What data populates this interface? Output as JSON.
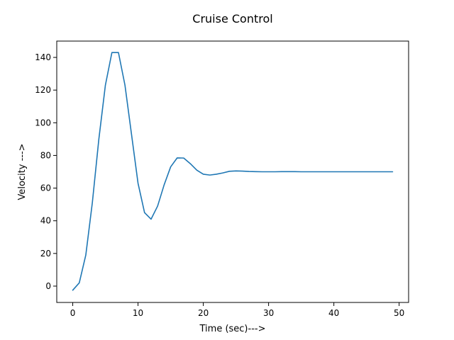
{
  "chart_data": {
    "type": "line",
    "title": "Cruise Control",
    "xlabel": "Time (sec)--->",
    "ylabel": "Velocity --->",
    "xlim": [
      -2.45,
      51.45
    ],
    "ylim": [
      -10.0,
      150.0
    ],
    "xticks": [
      0,
      10,
      20,
      30,
      40,
      50
    ],
    "yticks": [
      0,
      20,
      40,
      60,
      80,
      100,
      120,
      140
    ],
    "grid": false,
    "series": [
      {
        "color": "#1f77b4",
        "x": [
          0,
          1,
          2,
          3,
          4,
          5,
          6,
          7,
          8,
          9,
          10,
          11,
          12,
          13,
          14,
          15,
          16,
          17,
          18,
          19,
          20,
          21,
          22,
          23,
          24,
          25,
          26,
          27,
          28,
          29,
          30,
          31,
          32,
          33,
          34,
          35,
          36,
          37,
          38,
          39,
          40,
          41,
          42,
          43,
          44,
          45,
          46,
          47,
          48,
          49
        ],
        "y": [
          -2.5,
          2,
          19,
          51,
          90,
          123,
          143,
          143,
          123,
          93,
          63,
          45,
          41,
          49,
          62,
          73,
          78.5,
          78.4,
          75,
          71,
          68.5,
          68,
          68.5,
          69.3,
          70.3,
          70.5,
          70.4,
          70.2,
          70.1,
          70,
          70,
          70,
          70.1,
          70.1,
          70.1,
          70,
          70,
          70,
          70,
          70,
          70,
          70,
          70,
          70,
          70,
          70,
          70,
          70,
          70,
          70
        ]
      }
    ]
  }
}
